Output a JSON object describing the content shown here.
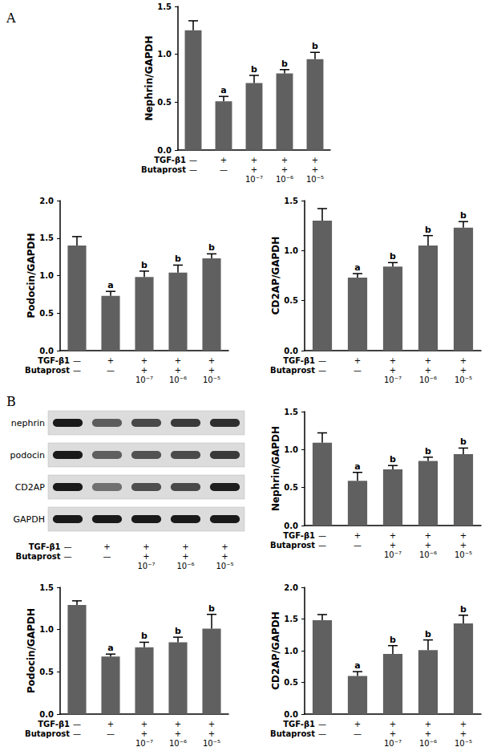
{
  "panel_labels": [
    "A",
    "B"
  ],
  "blot": {
    "rows": [
      "nephrin",
      "podocin",
      "CD2AP",
      "GAPDH"
    ],
    "lanes": [
      "—\n—",
      "+\n—",
      "+\n+\n10⁻⁷",
      "+\n+\n10⁻⁶",
      "+\n+\n10⁻⁵"
    ],
    "row_labels": [
      "TGF-β1",
      "Butaprost"
    ]
  },
  "chart_data": [
    {
      "type": "bar",
      "y_label": "Nephrin/GAPDH",
      "color": "#606060",
      "grid": false,
      "categories": [
        "—\n—",
        "+\n—",
        "+\n+\n10⁻⁷",
        "+\n+\n10⁻⁶",
        "+\n+\n10⁻⁵"
      ],
      "row_labels": [
        "TGF-β1",
        "Butaprost"
      ],
      "values": [
        1.25,
        0.51,
        0.7,
        0.8,
        0.95
      ],
      "errors": [
        0.1,
        0.05,
        0.08,
        0.04,
        0.07
      ],
      "annotations": [
        null,
        "a",
        "b",
        "b",
        "b"
      ],
      "ylim": [
        0,
        1.5
      ],
      "yticks": [
        {
          "value": 0,
          "label": "0.0"
        },
        {
          "value": 0.5,
          "label": "0.5"
        },
        {
          "value": 1,
          "label": "1.0"
        },
        {
          "value": 1.5,
          "label": "1.5"
        }
      ]
    },
    {
      "type": "bar",
      "y_label": "Podocin/GAPDH",
      "color": "#606060",
      "grid": false,
      "categories": [
        "—\n—",
        "+\n—",
        "+\n+\n10⁻⁷",
        "+\n+\n10⁻⁶",
        "+\n+\n10⁻⁵"
      ],
      "row_labels": [
        "TGF-β1",
        "Butaprost"
      ],
      "values": [
        1.4,
        0.73,
        0.98,
        1.04,
        1.23
      ],
      "errors": [
        0.12,
        0.06,
        0.08,
        0.1,
        0.06
      ],
      "annotations": [
        null,
        "a",
        "b",
        "b",
        "b"
      ],
      "ylim": [
        0,
        2
      ],
      "yticks": [
        {
          "value": 0,
          "label": "0.0"
        },
        {
          "value": 0.5,
          "label": "0.5"
        },
        {
          "value": 1,
          "label": "1.0"
        },
        {
          "value": 1.5,
          "label": "1.5"
        },
        {
          "value": 2,
          "label": "2.0"
        }
      ]
    },
    {
      "type": "bar",
      "y_label": "CD2AP/GAPDH",
      "color": "#606060",
      "grid": false,
      "categories": [
        "—\n—",
        "+\n—",
        "+\n+\n10⁻⁷",
        "+\n+\n10⁻⁶",
        "+\n+\n10⁻⁵"
      ],
      "row_labels": [
        "TGF-β1",
        "Butaprost"
      ],
      "values": [
        1.3,
        0.73,
        0.84,
        1.05,
        1.23
      ],
      "errors": [
        0.12,
        0.04,
        0.04,
        0.1,
        0.06
      ],
      "annotations": [
        null,
        "a",
        "b",
        "b",
        "b"
      ],
      "ylim": [
        0,
        1.5
      ],
      "yticks": [
        {
          "value": 0,
          "label": "0.0"
        },
        {
          "value": 0.5,
          "label": "0.5"
        },
        {
          "value": 1,
          "label": "1.0"
        },
        {
          "value": 1.5,
          "label": "1.5"
        }
      ]
    },
    {
      "type": "bar",
      "y_label": "Nephrin/GAPDH",
      "color": "#606060",
      "grid": false,
      "categories": [
        "—\n—",
        "+\n—",
        "+\n+\n10⁻⁷",
        "+\n+\n10⁻⁶",
        "+\n+\n10⁻⁵"
      ],
      "row_labels": [
        "TGF-β1",
        "Butaprost"
      ],
      "values": [
        1.09,
        0.59,
        0.74,
        0.85,
        0.94
      ],
      "errors": [
        0.13,
        0.11,
        0.05,
        0.05,
        0.08
      ],
      "annotations": [
        null,
        "a",
        "b",
        "b",
        "b"
      ],
      "ylim": [
        0,
        1.5
      ],
      "yticks": [
        {
          "value": 0,
          "label": "0.0"
        },
        {
          "value": 0.5,
          "label": "0.5"
        },
        {
          "value": 1,
          "label": "1.0"
        },
        {
          "value": 1.5,
          "label": "1.5"
        }
      ]
    },
    {
      "type": "bar",
      "y_label": "Podocin/GAPDH",
      "color": "#606060",
      "grid": false,
      "categories": [
        "—\n—",
        "+\n—",
        "+\n+\n10⁻⁷",
        "+\n+\n10⁻⁶",
        "+\n+\n10⁻⁵"
      ],
      "row_labels": [
        "TGF-β1",
        "Butaprost"
      ],
      "values": [
        1.29,
        0.68,
        0.79,
        0.85,
        1.01
      ],
      "errors": [
        0.05,
        0.03,
        0.06,
        0.06,
        0.17
      ],
      "annotations": [
        null,
        "a",
        "b",
        "b",
        "b"
      ],
      "ylim": [
        0,
        1.5
      ],
      "yticks": [
        {
          "value": 0,
          "label": "0.0"
        },
        {
          "value": 0.5,
          "label": "0.5"
        },
        {
          "value": 1,
          "label": "1.0"
        },
        {
          "value": 1.5,
          "label": "1.5"
        }
      ]
    },
    {
      "type": "bar",
      "y_label": "CD2AP/GAPDH",
      "color": "#606060",
      "grid": false,
      "categories": [
        "—\n—",
        "+\n—",
        "+\n+\n10⁻⁷",
        "+\n+\n10⁻⁶",
        "+\n+\n10⁻⁵"
      ],
      "row_labels": [
        "TGF-β1",
        "Butaprost"
      ],
      "values": [
        1.48,
        0.6,
        0.95,
        1.01,
        1.43
      ],
      "errors": [
        0.09,
        0.07,
        0.13,
        0.16,
        0.13
      ],
      "annotations": [
        null,
        "a",
        "b",
        "b",
        "b"
      ],
      "ylim": [
        0,
        2
      ],
      "yticks": [
        {
          "value": 0,
          "label": "0.0"
        },
        {
          "value": 0.5,
          "label": "0.5"
        },
        {
          "value": 1,
          "label": "1.0"
        },
        {
          "value": 1.5,
          "label": "1.5"
        },
        {
          "value": 2,
          "label": "2.0"
        }
      ]
    }
  ]
}
